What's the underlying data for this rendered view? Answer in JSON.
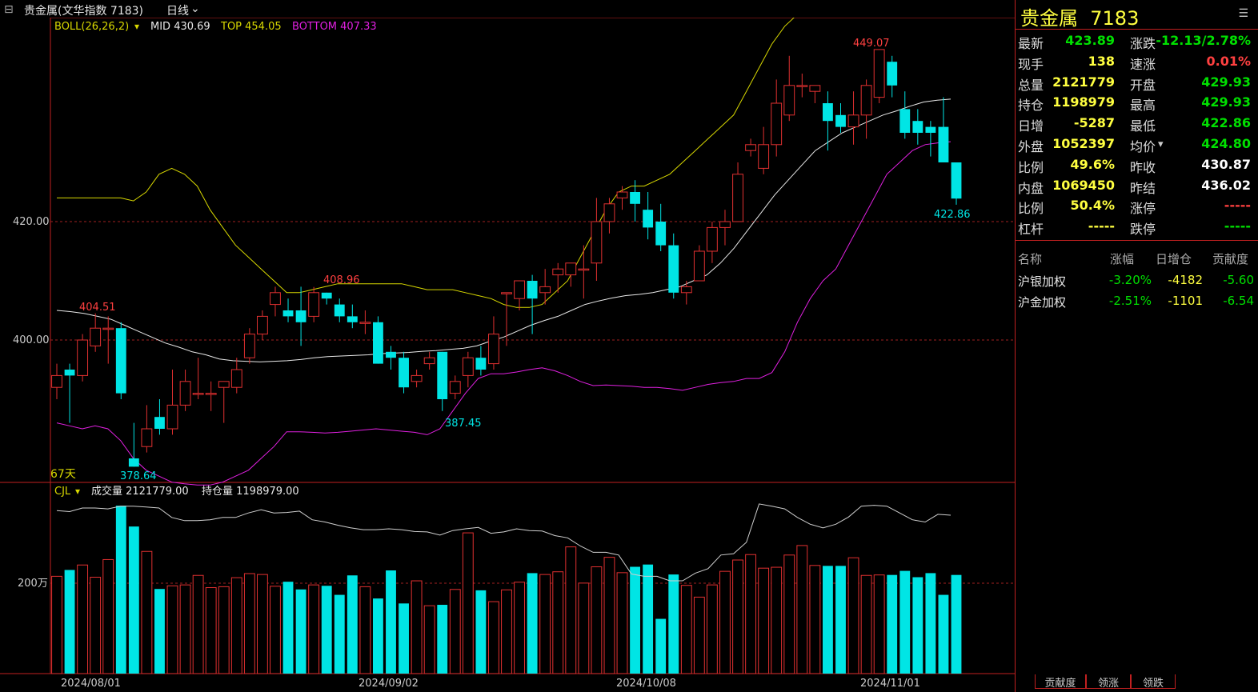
{
  "header": {
    "title": "贵金属(文华指数 7183)",
    "period": "日线"
  },
  "boll": {
    "name": "BOLL(26,26,2)",
    "mid_label": "MID 430.69",
    "top_label": "TOP 454.05",
    "bottom_label": "BOTTOM 407.33"
  },
  "volume_panel": {
    "name": "CJL",
    "vol_label": "成交量 2121779.00",
    "oi_label": "持仓量 1198979.00",
    "axis_label": "200万"
  },
  "chart_data": {
    "type": "candlestick",
    "y_ticks": [
      "420.00",
      "400.00"
    ],
    "x_ticks": [
      "2024/08/01",
      "2024/09/02",
      "2024/10/08",
      "2024/11/01"
    ],
    "days_label": "67天",
    "annotations": [
      "404.51",
      "408.96",
      "378.64",
      "387.45",
      "449.07",
      "422.86"
    ],
    "colors": {
      "up": "#e03030",
      "down": "#00e5e5",
      "top": "#d8d800",
      "mid": "#e8e8e8",
      "bottom": "#e020e0"
    }
  },
  "quote": {
    "name": "贵金属",
    "code": "7183",
    "rows": [
      {
        "l1": "最新",
        "v1": "423.89",
        "c1": "#00e000",
        "l2": "涨跌",
        "v2": "-12.13/2.78%",
        "c2": "#00e000"
      },
      {
        "l1": "现手",
        "v1": "138",
        "c1": "#ffff40",
        "l2": "速涨",
        "v2": "0.01%",
        "c2": "#ff4040"
      },
      {
        "l1": "总量",
        "v1": "2121779",
        "c1": "#ffff40",
        "l2": "开盘",
        "v2": "429.93",
        "c2": "#00e000"
      },
      {
        "l1": "持仓",
        "v1": "1198979",
        "c1": "#ffff40",
        "l2": "最高",
        "v2": "429.93",
        "c2": "#00e000"
      },
      {
        "l1": "日增",
        "v1": "-5287",
        "c1": "#ffff40",
        "l2": "最低",
        "v2": "422.86",
        "c2": "#00e000"
      },
      {
        "l1": "外盘",
        "v1": "1052397",
        "c1": "#ffff40",
        "l2": "均价",
        "v2": "424.80",
        "c2": "#00e000"
      },
      {
        "l1": "比例",
        "v1": "49.6%",
        "c1": "#ffff40",
        "l2": "昨收",
        "v2": "430.87",
        "c2": "#ffffff"
      },
      {
        "l1": "内盘",
        "v1": "1069450",
        "c1": "#ffff40",
        "l2": "昨结",
        "v2": "436.02",
        "c2": "#ffffff"
      },
      {
        "l1": "比例",
        "v1": "50.4%",
        "c1": "#ffff40",
        "l2": "涨停",
        "v2": "-----",
        "c2": "#ff4040"
      },
      {
        "l1": "杠杆",
        "v1": "-----",
        "c1": "#ffff40",
        "l2": "跌停",
        "v2": "-----",
        "c2": "#00e000"
      }
    ]
  },
  "contrib": {
    "headers": [
      "名称",
      "涨幅",
      "日增仓",
      "贡献度"
    ],
    "rows": [
      {
        "name": "沪银加权",
        "chg": "-3.20%",
        "oi": "-4182",
        "contrib": "-5.60"
      },
      {
        "name": "沪金加权",
        "chg": "-2.51%",
        "oi": "-1101",
        "contrib": "-6.54"
      }
    ]
  },
  "tabs": [
    "贡献度",
    "领涨",
    "领跌"
  ]
}
